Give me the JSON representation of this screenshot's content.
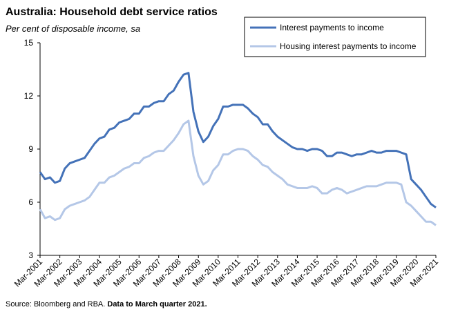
{
  "chart_data": {
    "type": "line",
    "title": "Australia: Household debt service ratios",
    "subtitle": "Per cent of disposable income, sa",
    "source": "Source: Bloomberg and RBA.",
    "note": "Data to March quarter 2021.",
    "categories": [
      "Mar-2001",
      null,
      null,
      null,
      "Mar-2002",
      null,
      null,
      null,
      "Mar-2003",
      null,
      null,
      null,
      "Mar-2004",
      null,
      null,
      null,
      "Mar-2005",
      null,
      null,
      null,
      "Mar-2006",
      null,
      null,
      null,
      "Mar-2007",
      null,
      null,
      null,
      "Mar-2008",
      null,
      null,
      null,
      "Mar-2009",
      null,
      null,
      null,
      "Mar-2010",
      null,
      null,
      null,
      "Mar-2011",
      null,
      null,
      null,
      "Mar-2012",
      null,
      null,
      null,
      "Mar-2013",
      null,
      null,
      null,
      "Mar-2014",
      null,
      null,
      null,
      "Mar-2015",
      null,
      null,
      null,
      "Mar-2016",
      null,
      null,
      null,
      "Mar-2017",
      null,
      null,
      null,
      "Mar-2018",
      null,
      null,
      null,
      "Mar-2019",
      null,
      null,
      null,
      "Mar-2020",
      null,
      null,
      null,
      "Mar-2021"
    ],
    "series": [
      {
        "name": "Interest payments to income",
        "color": "#4472b8",
        "values": [
          7.7,
          7.3,
          7.4,
          7.1,
          7.2,
          7.9,
          8.2,
          8.3,
          8.4,
          8.5,
          8.9,
          9.3,
          9.6,
          9.7,
          10.1,
          10.2,
          10.5,
          10.6,
          10.7,
          11.0,
          11.0,
          11.4,
          11.4,
          11.6,
          11.7,
          11.7,
          12.1,
          12.3,
          12.8,
          13.2,
          13.3,
          11.1,
          10.0,
          9.4,
          9.7,
          10.3,
          10.7,
          11.4,
          11.4,
          11.5,
          11.5,
          11.5,
          11.3,
          11.0,
          10.8,
          10.4,
          10.4,
          10.0,
          9.7,
          9.5,
          9.3,
          9.1,
          9.0,
          9.0,
          8.9,
          9.0,
          9.0,
          8.9,
          8.6,
          8.6,
          8.8,
          8.8,
          8.7,
          8.6,
          8.7,
          8.7,
          8.8,
          8.9,
          8.8,
          8.8,
          8.9,
          8.9,
          8.9,
          8.8,
          8.7,
          7.3,
          7.0,
          6.7,
          6.3,
          5.9,
          5.7
        ]
      },
      {
        "name": "Housing interest payments to income",
        "color": "#b4c7e7",
        "values": [
          5.6,
          5.1,
          5.2,
          5.0,
          5.1,
          5.6,
          5.8,
          5.9,
          6.0,
          6.1,
          6.3,
          6.7,
          7.1,
          7.1,
          7.4,
          7.5,
          7.7,
          7.9,
          8.0,
          8.2,
          8.2,
          8.5,
          8.6,
          8.8,
          8.9,
          8.9,
          9.2,
          9.5,
          9.9,
          10.4,
          10.6,
          8.6,
          7.5,
          7.0,
          7.2,
          7.8,
          8.1,
          8.7,
          8.7,
          8.9,
          9.0,
          9.0,
          8.9,
          8.6,
          8.4,
          8.1,
          8.0,
          7.7,
          7.5,
          7.3,
          7.0,
          6.9,
          6.8,
          6.8,
          6.8,
          6.9,
          6.8,
          6.5,
          6.5,
          6.7,
          6.8,
          6.7,
          6.5,
          6.6,
          6.7,
          6.8,
          6.9,
          6.9,
          6.9,
          7.0,
          7.1,
          7.1,
          7.1,
          7.0,
          6.0,
          5.8,
          5.5,
          5.2,
          4.9,
          4.9,
          4.7
        ]
      }
    ],
    "ylim": [
      3,
      15
    ],
    "yticks": [
      3,
      6,
      9,
      12,
      15
    ],
    "grid": false,
    "legend": "top-right"
  }
}
